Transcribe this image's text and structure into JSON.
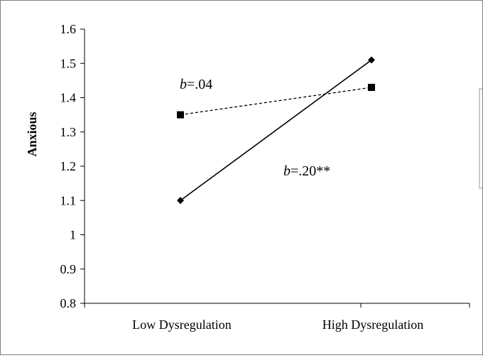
{
  "chart_data": {
    "type": "line",
    "title": "",
    "xlabel": "",
    "ylabel": "Anxious",
    "categories": [
      "Low Dysregulation",
      "High Dysregulation"
    ],
    "ylim": [
      0.8,
      1.6
    ],
    "yticks": [
      "0.8",
      "0.9",
      "1",
      "1.1",
      "1.2",
      "1.3",
      "1.4",
      "1.5",
      "1.6"
    ],
    "grid": false,
    "series": [
      {
        "values": [
          1.35,
          1.43
        ],
        "marker": "square",
        "line_style": "dashed",
        "color": "#000000"
      },
      {
        "values": [
          1.1,
          1.51
        ],
        "marker": "diamond",
        "line_style": "solid",
        "color": "#000000"
      }
    ],
    "annotations": {
      "dashed_slope": {
        "prefix": "b",
        "value": "=.04"
      },
      "solid_slope": {
        "prefix": "b",
        "value": "=.20**"
      }
    },
    "legend": {
      "placement": "right",
      "entries": []
    }
  }
}
